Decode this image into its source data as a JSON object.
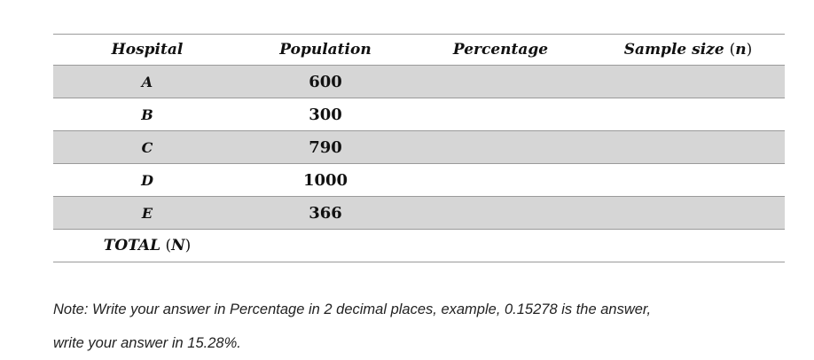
{
  "table": {
    "headers": {
      "hospital": "Hospital",
      "population": "Population",
      "percentage": "Percentage",
      "sample_size": "Sample size",
      "sample_size_open": "(",
      "sample_size_var": "n",
      "sample_size_close": ")"
    },
    "rows": [
      {
        "hospital": "A",
        "population": "600",
        "percentage": "",
        "sample_size": ""
      },
      {
        "hospital": "B",
        "population": "300",
        "percentage": "",
        "sample_size": ""
      },
      {
        "hospital": "C",
        "population": "790",
        "percentage": "",
        "sample_size": ""
      },
      {
        "hospital": "D",
        "population": "1000",
        "percentage": "",
        "sample_size": ""
      },
      {
        "hospital": "E",
        "population": "366",
        "percentage": "",
        "sample_size": ""
      }
    ],
    "total": {
      "label": "TOTAL",
      "open": "(",
      "var": "N",
      "close": ")",
      "population": "",
      "percentage": "",
      "sample_size": ""
    },
    "colors": {
      "shaded_row": "#d6d6d6",
      "rule": "#9a9a9a"
    }
  },
  "note": {
    "line1": "Note: Write your answer in Percentage in 2 decimal places, example, 0.15278 is the answer,",
    "line2": "write your answer in 15.28%."
  }
}
